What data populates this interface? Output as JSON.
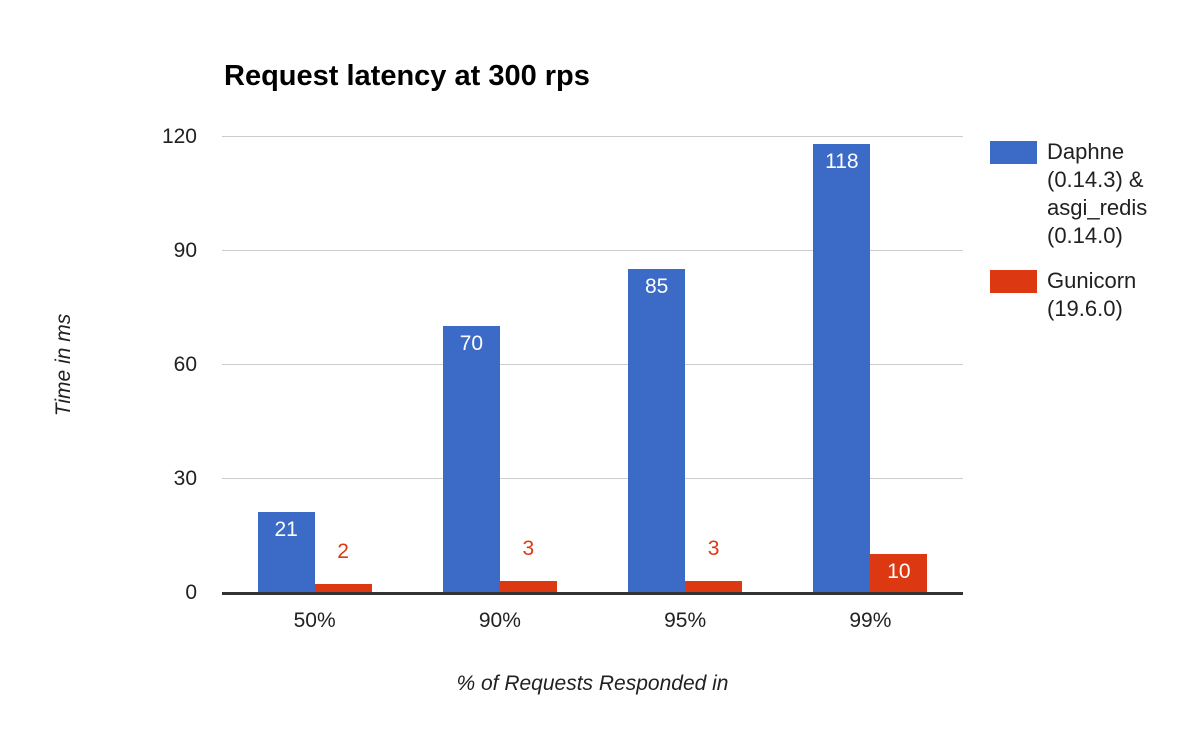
{
  "chart_data": {
    "type": "bar",
    "title": "Request latency at 300 rps",
    "xlabel": "% of Requests Responded in",
    "ylabel": "Time in ms",
    "categories": [
      "50%",
      "90%",
      "95%",
      "99%"
    ],
    "series": [
      {
        "name": "Daphne (0.14.3) & asgi_redis (0.14.0)",
        "color": "#3B6BC7",
        "values": [
          21,
          70,
          85,
          118
        ]
      },
      {
        "name": "Gunicorn (19.6.0)",
        "color": "#DC3912",
        "values": [
          2,
          3,
          3,
          10
        ]
      }
    ],
    "ylim": [
      0,
      120
    ],
    "yticks": [
      0,
      30,
      60,
      90,
      120
    ],
    "grid": true,
    "legend_position": "right",
    "annotations": "values shown on bars; white when inside bar, series-colored when above small bars"
  },
  "colors": {
    "background": "#FFFFFF",
    "gridline": "#CCCCCC",
    "baseline": "#333333",
    "text": "#212121",
    "title": "#000000",
    "annotation_inside": "#FFFFFF"
  }
}
